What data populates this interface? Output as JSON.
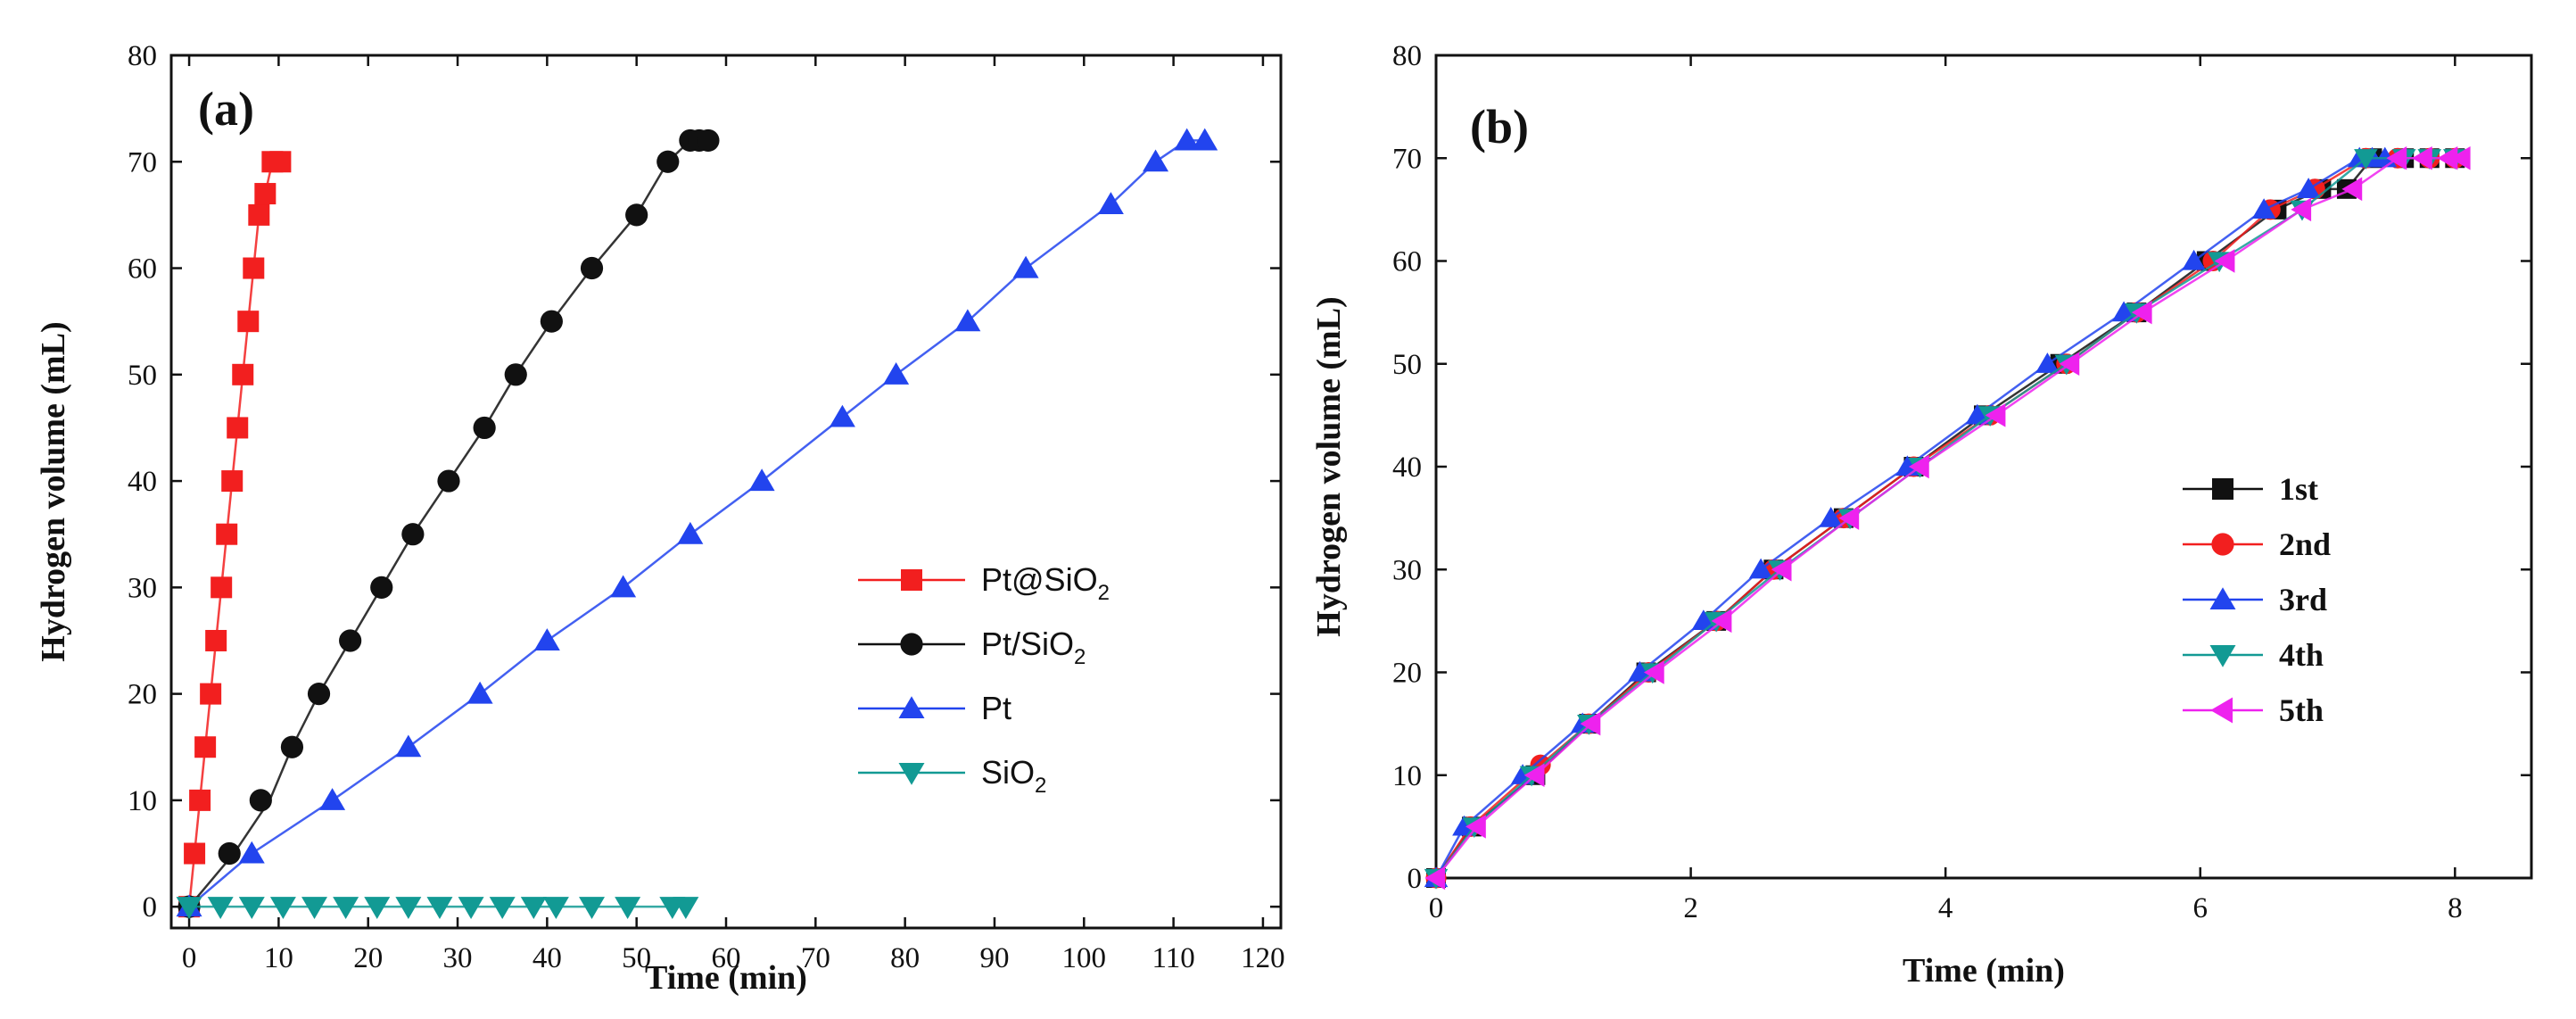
{
  "chart_data": [
    {
      "panel": "(a)",
      "type": "line",
      "xlabel": "Time (min)",
      "ylabel": "Hydrogen volume (mL)",
      "xlim": [
        -2,
        122
      ],
      "ylim": [
        -2,
        80
      ],
      "xticks": [
        0,
        10,
        20,
        30,
        40,
        50,
        60,
        70,
        80,
        90,
        100,
        110,
        120
      ],
      "yticks": [
        0,
        10,
        20,
        30,
        40,
        50,
        60,
        70,
        80
      ],
      "legend_position": "right-middle",
      "series": [
        {
          "name": "Pt@SiO2",
          "label_main": "Pt@SiO",
          "label_sub": "2",
          "color": "#f21f1f",
          "marker": "square",
          "x": [
            0,
            0.6,
            1.2,
            1.8,
            2.4,
            3.0,
            3.6,
            4.2,
            4.8,
            5.4,
            6.0,
            6.6,
            7.2,
            7.8,
            8.5,
            9.3,
            10.2
          ],
          "y": [
            0,
            5,
            10,
            15,
            20,
            25,
            30,
            35,
            40,
            45,
            50,
            55,
            60,
            65,
            67,
            70,
            70
          ]
        },
        {
          "name": "Pt/SiO2",
          "label_main": "Pt/SiO",
          "label_sub": "2",
          "color": "#111111",
          "marker": "circle",
          "x": [
            0,
            4.5,
            8,
            11.5,
            14.5,
            18,
            21.5,
            25,
            29,
            33,
            36.5,
            40.5,
            45,
            50,
            53.5,
            56,
            57,
            58
          ],
          "y": [
            0,
            5,
            10,
            15,
            20,
            25,
            30,
            35,
            40,
            45,
            50,
            55,
            60,
            65,
            70,
            72,
            72,
            72
          ],
          "line_x": [
            0,
            5,
            9,
            11.5,
            14.5,
            18,
            21.5,
            25,
            29,
            33,
            36.5,
            40.5,
            45,
            50,
            53.5,
            56,
            57,
            58
          ],
          "line_y": [
            0,
            5,
            10,
            15,
            20,
            25,
            30,
            35,
            40,
            45,
            50,
            55,
            60,
            65,
            70,
            72,
            72,
            72
          ]
        },
        {
          "name": "Pt",
          "label_main": "Pt",
          "label_sub": "",
          "color": "#2244ee",
          "marker": "triangle-up",
          "x": [
            0,
            7,
            16,
            24.5,
            32.5,
            40,
            48.5,
            56,
            64,
            73,
            79,
            87,
            93.5,
            103,
            108,
            111.5,
            113.5
          ],
          "y": [
            0,
            5,
            10,
            15,
            20,
            25,
            30,
            35,
            40,
            46,
            50,
            55,
            60,
            66,
            70,
            72,
            72
          ]
        },
        {
          "name": "SiO2",
          "label_main": "SiO",
          "label_sub": "2",
          "color": "#129a94",
          "marker": "triangle-down",
          "x": [
            0,
            3.5,
            7,
            10.5,
            14,
            17.5,
            21,
            24.5,
            28,
            31.5,
            35,
            38.5,
            41,
            45,
            49,
            54,
            55.5
          ],
          "y": [
            0,
            0,
            0,
            0,
            0,
            0,
            0,
            0,
            0,
            0,
            0,
            0,
            0,
            0,
            0,
            0,
            0
          ]
        }
      ]
    },
    {
      "panel": "(b)",
      "type": "line",
      "xlabel": "Time (min)",
      "ylabel": "Hydrogen volume (mL)",
      "xlim": [
        0,
        8.6
      ],
      "ylim": [
        0,
        80
      ],
      "xticks": [
        0,
        2,
        4,
        6,
        8
      ],
      "yticks": [
        0,
        10,
        20,
        30,
        40,
        50,
        60,
        70,
        80
      ],
      "legend_position": "right-middle",
      "series": [
        {
          "name": "1st",
          "label_main": "1st",
          "label_sub": "",
          "color": "#111111",
          "marker": "square",
          "x": [
            0,
            0.28,
            0.78,
            1.2,
            1.65,
            2.2,
            2.65,
            3.2,
            3.75,
            4.3,
            4.9,
            5.5,
            6.05,
            6.6,
            6.95,
            7.15,
            7.35,
            7.6,
            7.8,
            8.0
          ],
          "y": [
            0,
            5,
            10,
            15,
            20,
            25,
            30,
            35,
            40,
            45,
            50,
            55,
            60,
            65,
            67,
            67,
            70,
            70,
            70,
            70
          ]
        },
        {
          "name": "2nd",
          "label_main": "2nd",
          "label_sub": "",
          "color": "#f21f1f",
          "marker": "circle",
          "x": [
            0,
            0.27,
            0.82,
            1.2,
            1.67,
            2.2,
            2.65,
            3.2,
            3.75,
            4.35,
            4.95,
            5.5,
            6.1,
            6.55,
            6.9,
            7.3,
            7.55,
            7.8,
            8.0
          ],
          "y": [
            0,
            5,
            11,
            15,
            20,
            25,
            30,
            35,
            40,
            45,
            50,
            55,
            60,
            65,
            67,
            70,
            70,
            70,
            70
          ]
        },
        {
          "name": "3rd",
          "label_main": "3rd",
          "label_sub": "",
          "color": "#2244ee",
          "marker": "triangle-up",
          "x": [
            0,
            0.22,
            0.68,
            1.15,
            1.6,
            2.1,
            2.55,
            3.1,
            3.7,
            4.25,
            4.8,
            5.4,
            5.95,
            6.5,
            6.85,
            7.25,
            7.35,
            7.45
          ],
          "y": [
            0,
            5,
            10,
            15,
            20,
            25,
            30,
            35,
            40,
            45,
            50,
            55,
            60,
            65,
            67,
            70,
            70,
            70
          ]
        },
        {
          "name": "4th",
          "label_main": "4th",
          "label_sub": "",
          "color": "#129a94",
          "marker": "triangle-down",
          "x": [
            0,
            0.3,
            0.75,
            1.2,
            1.7,
            2.2,
            2.7,
            3.25,
            3.8,
            4.35,
            4.95,
            5.5,
            6.15,
            6.8,
            7.3,
            7.6,
            7.8,
            8.0
          ],
          "y": [
            0,
            5,
            10,
            15,
            20,
            25,
            30,
            35,
            40,
            45,
            50,
            55,
            60,
            65,
            70,
            70,
            70,
            70
          ]
        },
        {
          "name": "5th",
          "label_main": "5th",
          "label_sub": "",
          "color": "#ee22ee",
          "marker": "triangle-left",
          "x": [
            0,
            0.32,
            0.78,
            1.22,
            1.72,
            2.25,
            2.72,
            3.25,
            3.8,
            4.4,
            4.98,
            5.55,
            6.2,
            6.8,
            7.2,
            7.55,
            7.75,
            7.95,
            8.05
          ],
          "y": [
            0,
            5,
            10,
            15,
            20,
            25,
            30,
            35,
            40,
            45,
            50,
            55,
            60,
            65,
            67,
            70,
            70,
            70,
            70
          ]
        }
      ]
    }
  ]
}
